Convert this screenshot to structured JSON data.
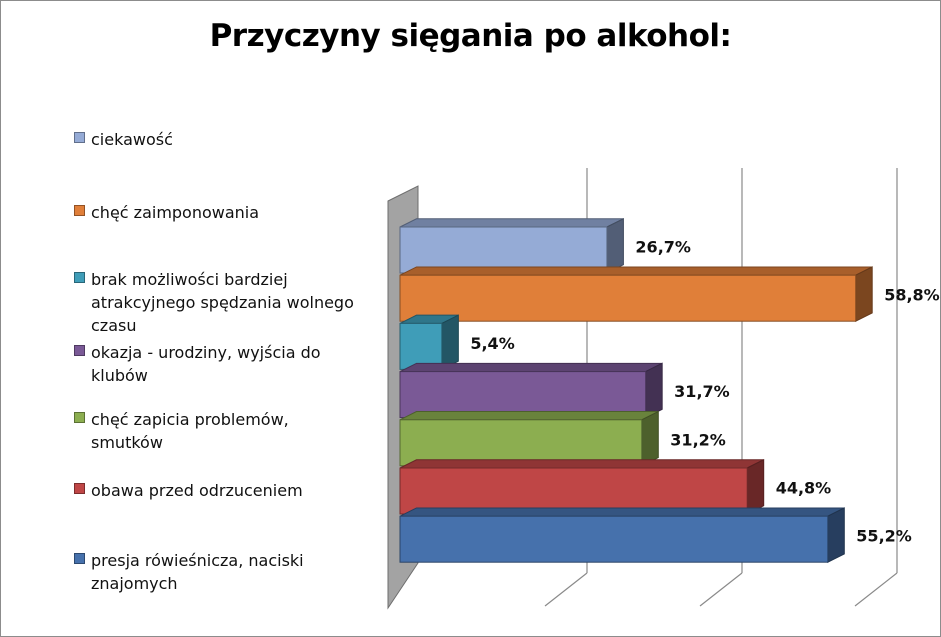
{
  "chart_data": {
    "type": "bar",
    "orientation": "horizontal",
    "style": "3d",
    "title": "Przyczyny sięgania po alkohol:",
    "legend_position": "left",
    "grid": true,
    "xlim": [
      0,
      60
    ],
    "categories": [
      "ciekawość",
      "chęć zaimponowania",
      "brak możliwości bardziej atrakcyjnego spędzania wolnego czasu",
      "okazja - urodziny, wyjścia do klubów",
      "chęć zapicia problemów, smutków",
      "obawa przed odrzuceniem",
      "presja rówieśnicza, naciski znajomych"
    ],
    "values": [
      26.7,
      58.8,
      5.4,
      31.7,
      31.2,
      44.8,
      55.2
    ],
    "data_labels": [
      "26,7%",
      "58,8%",
      "5,4%",
      "31,7%",
      "31,2%",
      "44,8%",
      "55,2%"
    ],
    "colors": [
      "#95ABD6",
      "#E07F39",
      "#3F9DB8",
      "#7A5996",
      "#8CAE50",
      "#BF4646",
      "#4671AC"
    ]
  }
}
